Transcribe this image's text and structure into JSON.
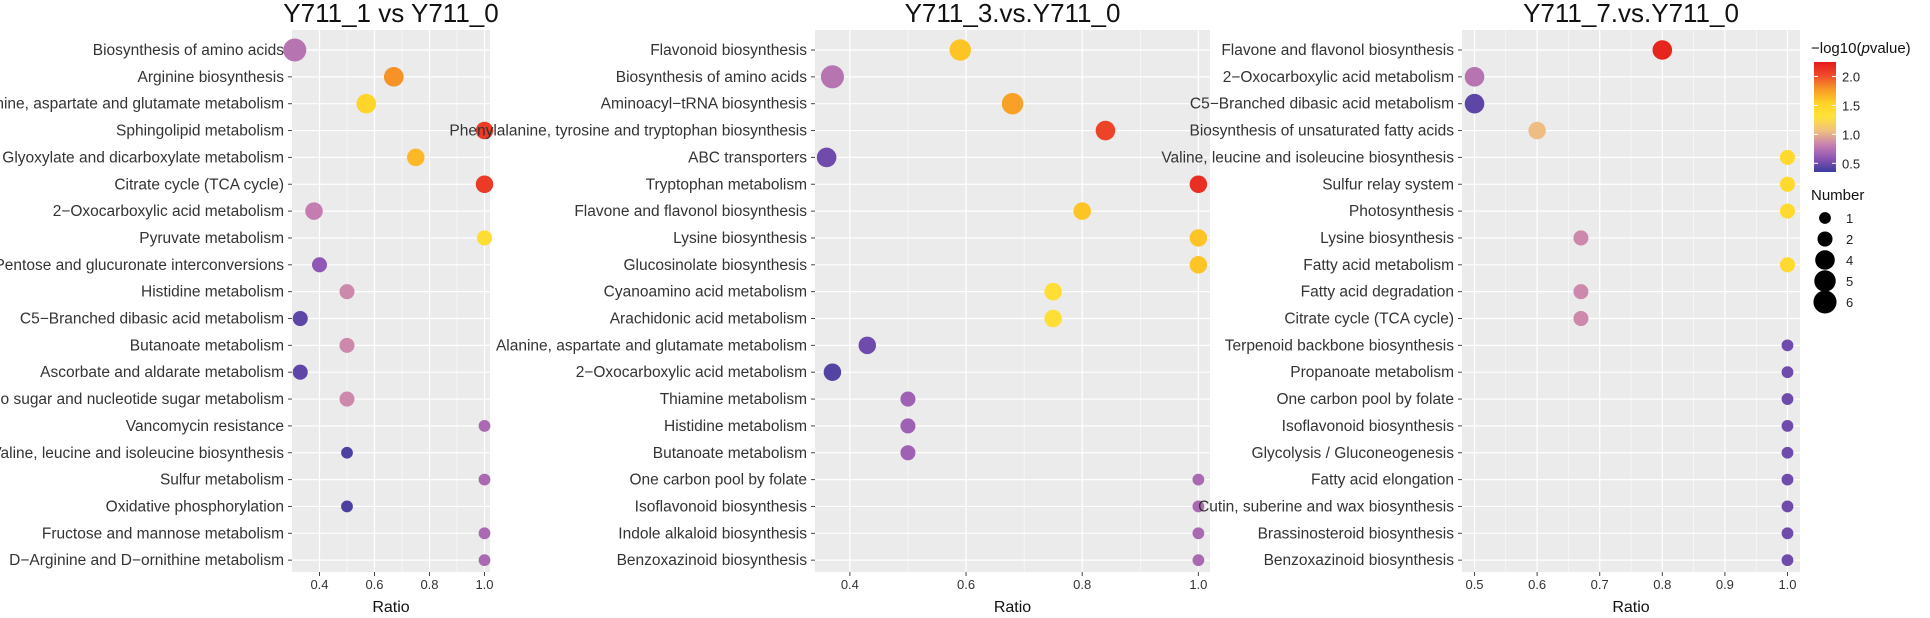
{
  "chart_data": [
    {
      "type": "scatter",
      "title": "Y711_1 vs Y711_0",
      "xlabel": "Ratio",
      "xlim": [
        0.3,
        1.02
      ],
      "xticks": [
        0.4,
        0.6,
        0.8,
        1.0
      ],
      "xtick_labels": [
        "0.4",
        "0.6",
        "0.8",
        "1.0"
      ],
      "grid": true,
      "points": [
        {
          "pathway": "Biosynthesis of amino acids",
          "ratio": 0.31,
          "number": 6,
          "neg_log10_p": 0.75
        },
        {
          "pathway": "Arginine biosynthesis",
          "ratio": 0.67,
          "number": 4,
          "neg_log10_p": 1.8
        },
        {
          "pathway": "Alanine, aspartate and glutamate metabolism",
          "ratio": 0.57,
          "number": 4,
          "neg_log10_p": 1.5
        },
        {
          "pathway": "Sphingolipid metabolism",
          "ratio": 1.0,
          "number": 3,
          "neg_log10_p": 2.1
        },
        {
          "pathway": "Glyoxylate and dicarboxylate metabolism",
          "ratio": 0.75,
          "number": 3,
          "neg_log10_p": 1.65
        },
        {
          "pathway": "Citrate cycle (TCA cycle)",
          "ratio": 1.0,
          "number": 3,
          "neg_log10_p": 2.1
        },
        {
          "pathway": "2−Oxocarboxylic acid metabolism",
          "ratio": 0.38,
          "number": 3,
          "neg_log10_p": 0.8
        },
        {
          "pathway": "Pyruvate metabolism",
          "ratio": 1.0,
          "number": 2,
          "neg_log10_p": 1.4
        },
        {
          "pathway": "Pentose and glucuronate interconversions",
          "ratio": 0.4,
          "number": 2,
          "neg_log10_p": 0.6
        },
        {
          "pathway": "Histidine metabolism",
          "ratio": 0.5,
          "number": 2,
          "neg_log10_p": 0.85
        },
        {
          "pathway": "C5−Branched dibasic acid metabolism",
          "ratio": 0.33,
          "number": 2,
          "neg_log10_p": 0.45
        },
        {
          "pathway": "Butanoate metabolism",
          "ratio": 0.5,
          "number": 2,
          "neg_log10_p": 0.85
        },
        {
          "pathway": "Ascorbate and aldarate metabolism",
          "ratio": 0.33,
          "number": 2,
          "neg_log10_p": 0.45
        },
        {
          "pathway": "Amino sugar and nucleotide sugar metabolism",
          "ratio": 0.5,
          "number": 2,
          "neg_log10_p": 0.85
        },
        {
          "pathway": "Vancomycin resistance",
          "ratio": 1.0,
          "number": 1,
          "neg_log10_p": 0.7
        },
        {
          "pathway": "Valine, leucine and isoleucine biosynthesis",
          "ratio": 0.5,
          "number": 1,
          "neg_log10_p": 0.4
        },
        {
          "pathway": "Sulfur metabolism",
          "ratio": 1.0,
          "number": 1,
          "neg_log10_p": 0.7
        },
        {
          "pathway": "Oxidative phosphorylation",
          "ratio": 0.5,
          "number": 1,
          "neg_log10_p": 0.4
        },
        {
          "pathway": "Fructose and mannose metabolism",
          "ratio": 1.0,
          "number": 1,
          "neg_log10_p": 0.7
        },
        {
          "pathway": "D−Arginine and D−ornithine metabolism",
          "ratio": 1.0,
          "number": 1,
          "neg_log10_p": 0.7
        }
      ]
    },
    {
      "type": "scatter",
      "title": "Y711_3.vs.Y711_0",
      "xlabel": "Ratio",
      "xlim": [
        0.34,
        1.02
      ],
      "xticks": [
        0.4,
        0.6,
        0.8,
        1.0
      ],
      "xtick_labels": [
        "0.4",
        "0.6",
        "0.8",
        "1.0"
      ],
      "grid": true,
      "points": [
        {
          "pathway": "Flavonoid biosynthesis",
          "ratio": 0.59,
          "number": 5,
          "neg_log10_p": 1.6
        },
        {
          "pathway": "Biosynthesis of amino acids",
          "ratio": 0.37,
          "number": 6,
          "neg_log10_p": 0.75
        },
        {
          "pathway": "Aminoacyl−tRNA biosynthesis",
          "ratio": 0.68,
          "number": 5,
          "neg_log10_p": 1.75
        },
        {
          "pathway": "Phenylalanine, tyrosine and tryptophan biosynthesis",
          "ratio": 0.84,
          "number": 4,
          "neg_log10_p": 2.05
        },
        {
          "pathway": "ABC transporters",
          "ratio": 0.36,
          "number": 4,
          "neg_log10_p": 0.5
        },
        {
          "pathway": "Tryptophan metabolism",
          "ratio": 1.0,
          "number": 3,
          "neg_log10_p": 2.15
        },
        {
          "pathway": "Flavone and flavonol biosynthesis",
          "ratio": 0.8,
          "number": 3,
          "neg_log10_p": 1.6
        },
        {
          "pathway": "Lysine biosynthesis",
          "ratio": 1.0,
          "number": 3,
          "neg_log10_p": 1.6
        },
        {
          "pathway": "Glucosinolate biosynthesis",
          "ratio": 1.0,
          "number": 3,
          "neg_log10_p": 1.6
        },
        {
          "pathway": "Cyanoamino acid metabolism",
          "ratio": 0.75,
          "number": 3,
          "neg_log10_p": 1.35
        },
        {
          "pathway": "Arachidonic acid metabolism",
          "ratio": 0.75,
          "number": 3,
          "neg_log10_p": 1.35
        },
        {
          "pathway": "Alanine, aspartate and glutamate metabolism",
          "ratio": 0.43,
          "number": 3,
          "neg_log10_p": 0.5
        },
        {
          "pathway": "2−Oxocarboxylic acid metabolism",
          "ratio": 0.37,
          "number": 3,
          "neg_log10_p": 0.42
        },
        {
          "pathway": "Thiamine metabolism",
          "ratio": 0.5,
          "number": 2,
          "neg_log10_p": 0.65
        },
        {
          "pathway": "Histidine metabolism",
          "ratio": 0.5,
          "number": 2,
          "neg_log10_p": 0.65
        },
        {
          "pathway": "Butanoate metabolism",
          "ratio": 0.5,
          "number": 2,
          "neg_log10_p": 0.65
        },
        {
          "pathway": "One carbon pool by folate",
          "ratio": 1.0,
          "number": 1,
          "neg_log10_p": 0.7
        },
        {
          "pathway": "Isoflavonoid biosynthesis",
          "ratio": 1.0,
          "number": 1,
          "neg_log10_p": 0.7
        },
        {
          "pathway": "Indole alkaloid biosynthesis",
          "ratio": 1.0,
          "number": 1,
          "neg_log10_p": 0.7
        },
        {
          "pathway": "Benzoxazinoid biosynthesis",
          "ratio": 1.0,
          "number": 1,
          "neg_log10_p": 0.7
        }
      ]
    },
    {
      "type": "scatter",
      "title": "Y711_7.vs.Y711_0",
      "xlabel": "Ratio",
      "xlim": [
        0.48,
        1.02
      ],
      "xticks": [
        0.5,
        0.6,
        0.7,
        0.8,
        0.9,
        1.0
      ],
      "xtick_labels": [
        "0.5",
        "0.6",
        "0.7",
        "0.8",
        "0.9",
        "1.0"
      ],
      "grid": true,
      "points": [
        {
          "pathway": "Flavone and flavonol biosynthesis",
          "ratio": 0.8,
          "number": 4,
          "neg_log10_p": 2.2
        },
        {
          "pathway": "2−Oxocarboxylic acid metabolism",
          "ratio": 0.5,
          "number": 4,
          "neg_log10_p": 0.75
        },
        {
          "pathway": "C5−Branched dibasic acid metabolism",
          "ratio": 0.5,
          "number": 4,
          "neg_log10_p": 0.45
        },
        {
          "pathway": "Biosynthesis of unsaturated fatty acids",
          "ratio": 0.6,
          "number": 3,
          "neg_log10_p": 1.05
        },
        {
          "pathway": "Valine, leucine and isoleucine biosynthesis",
          "ratio": 1.0,
          "number": 2,
          "neg_log10_p": 1.45
        },
        {
          "pathway": "Sulfur relay system",
          "ratio": 1.0,
          "number": 2,
          "neg_log10_p": 1.45
        },
        {
          "pathway": "Photosynthesis",
          "ratio": 1.0,
          "number": 2,
          "neg_log10_p": 1.45
        },
        {
          "pathway": "Lysine biosynthesis",
          "ratio": 0.67,
          "number": 2,
          "neg_log10_p": 0.85
        },
        {
          "pathway": "Fatty acid metabolism",
          "ratio": 1.0,
          "number": 2,
          "neg_log10_p": 1.45
        },
        {
          "pathway": "Fatty acid degradation",
          "ratio": 0.67,
          "number": 2,
          "neg_log10_p": 0.85
        },
        {
          "pathway": "Citrate cycle (TCA cycle)",
          "ratio": 0.67,
          "number": 2,
          "neg_log10_p": 0.85
        },
        {
          "pathway": "Terpenoid backbone biosynthesis",
          "ratio": 1.0,
          "number": 1,
          "neg_log10_p": 0.5
        },
        {
          "pathway": "Propanoate metabolism",
          "ratio": 1.0,
          "number": 1,
          "neg_log10_p": 0.5
        },
        {
          "pathway": "One carbon pool by folate",
          "ratio": 1.0,
          "number": 1,
          "neg_log10_p": 0.5
        },
        {
          "pathway": "Isoflavonoid biosynthesis",
          "ratio": 1.0,
          "number": 1,
          "neg_log10_p": 0.5
        },
        {
          "pathway": "Glycolysis / Gluconeogenesis",
          "ratio": 1.0,
          "number": 1,
          "neg_log10_p": 0.5
        },
        {
          "pathway": "Fatty acid elongation",
          "ratio": 1.0,
          "number": 1,
          "neg_log10_p": 0.5
        },
        {
          "pathway": "Cutin, suberine and wax biosynthesis",
          "ratio": 1.0,
          "number": 1,
          "neg_log10_p": 0.5
        },
        {
          "pathway": "Brassinosteroid biosynthesis",
          "ratio": 1.0,
          "number": 1,
          "neg_log10_p": 0.5
        },
        {
          "pathway": "Benzoxazinoid biosynthesis",
          "ratio": 1.0,
          "number": 1,
          "neg_log10_p": 0.5
        }
      ]
    }
  ],
  "legend": {
    "color_title_prefix": "−log10(",
    "color_title_italic": "p",
    "color_title_suffix": "value)",
    "color_range": [
      0.35,
      2.25
    ],
    "color_ticks": [
      0.5,
      1.0,
      1.5,
      2.0
    ],
    "color_tick_labels": [
      "0.5",
      "1.0",
      "1.5",
      "2.0"
    ],
    "color_stops": [
      "#3b3b9c",
      "#8e55b4",
      "#c982b0",
      "#f0c080",
      "#ffe23a",
      "#ffd326",
      "#f89a26",
      "#ef4c2c",
      "#e41a1c"
    ],
    "size_title": "Number",
    "size_values": [
      1,
      2,
      4,
      5,
      6
    ],
    "size_labels": [
      "1",
      "2",
      "4",
      "5",
      "6"
    ]
  },
  "colors": {
    "panel_background": "#ebebeb",
    "grid": "#ffffff",
    "axis_text": "#333333"
  }
}
